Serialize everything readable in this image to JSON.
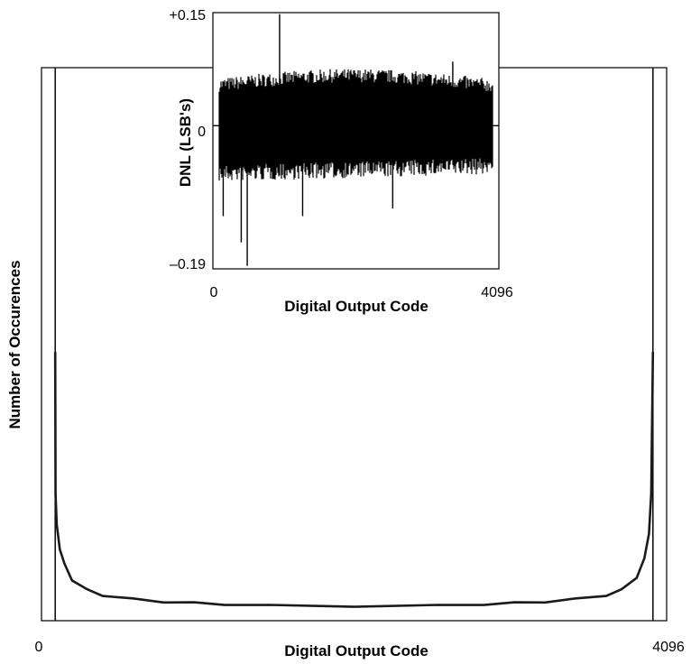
{
  "chart_data": [
    {
      "type": "line",
      "title": "",
      "xlabel": "Digital Output Code",
      "ylabel": "Number of Occurences",
      "xlim": [
        0,
        4096
      ],
      "x_tick_labels": [
        "0",
        "4096"
      ],
      "y_tick_labels": [],
      "grid": false,
      "legend": "none",
      "line_color": "#1a1a1a",
      "marker_lines_x": [
        90,
        4006
      ],
      "series": [
        {
          "x": [
            90,
            92,
            100,
            120,
            150,
            200,
            300,
            400,
            600,
            800,
            1000,
            1200,
            1500,
            2048,
            2600,
            2900,
            3100,
            3300,
            3500,
            3700,
            3800,
            3900,
            3950,
            3980,
            3995,
            4006
          ],
          "values": [
            1.0,
            0.45,
            0.33,
            0.24,
            0.18,
            0.12,
            0.08,
            0.06,
            0.045,
            0.035,
            0.03,
            0.025,
            0.02,
            0.018,
            0.02,
            0.025,
            0.03,
            0.035,
            0.045,
            0.06,
            0.08,
            0.13,
            0.2,
            0.3,
            0.45,
            1.0
          ]
        }
      ]
    },
    {
      "type": "line",
      "title": "",
      "xlabel": "Digital Output Code",
      "ylabel": "DNL (LSB's)",
      "xlim": [
        0,
        4096
      ],
      "ylim": [
        -0.19,
        0.15
      ],
      "x_tick_labels": [
        "0",
        "4096"
      ],
      "y_tick_labels": [
        "+0.15",
        "0",
        "–0.19"
      ],
      "grid": false,
      "legend": "none",
      "line_color": "#000000",
      "band_upper": 0.05,
      "band_lower": -0.05,
      "spikes": [
        {
          "x": 905,
          "value": 0.148
        },
        {
          "x": 420,
          "value": -0.186
        },
        {
          "x": 330,
          "value": -0.155
        },
        {
          "x": 60,
          "value": -0.12
        },
        {
          "x": 1250,
          "value": -0.12
        },
        {
          "x": 2600,
          "value": -0.11
        },
        {
          "x": 3500,
          "value": 0.085
        }
      ]
    }
  ]
}
